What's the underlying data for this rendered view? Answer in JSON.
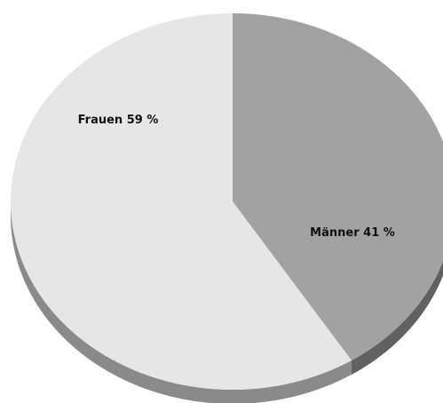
{
  "chart_data": {
    "type": "pie",
    "categories": [
      "Männer",
      "Frauen"
    ],
    "values": [
      41,
      59
    ],
    "value_labels": [
      "41 %",
      "59 %"
    ],
    "colors": [
      "#a1a2a1",
      "#e5e7e6"
    ]
  }
}
